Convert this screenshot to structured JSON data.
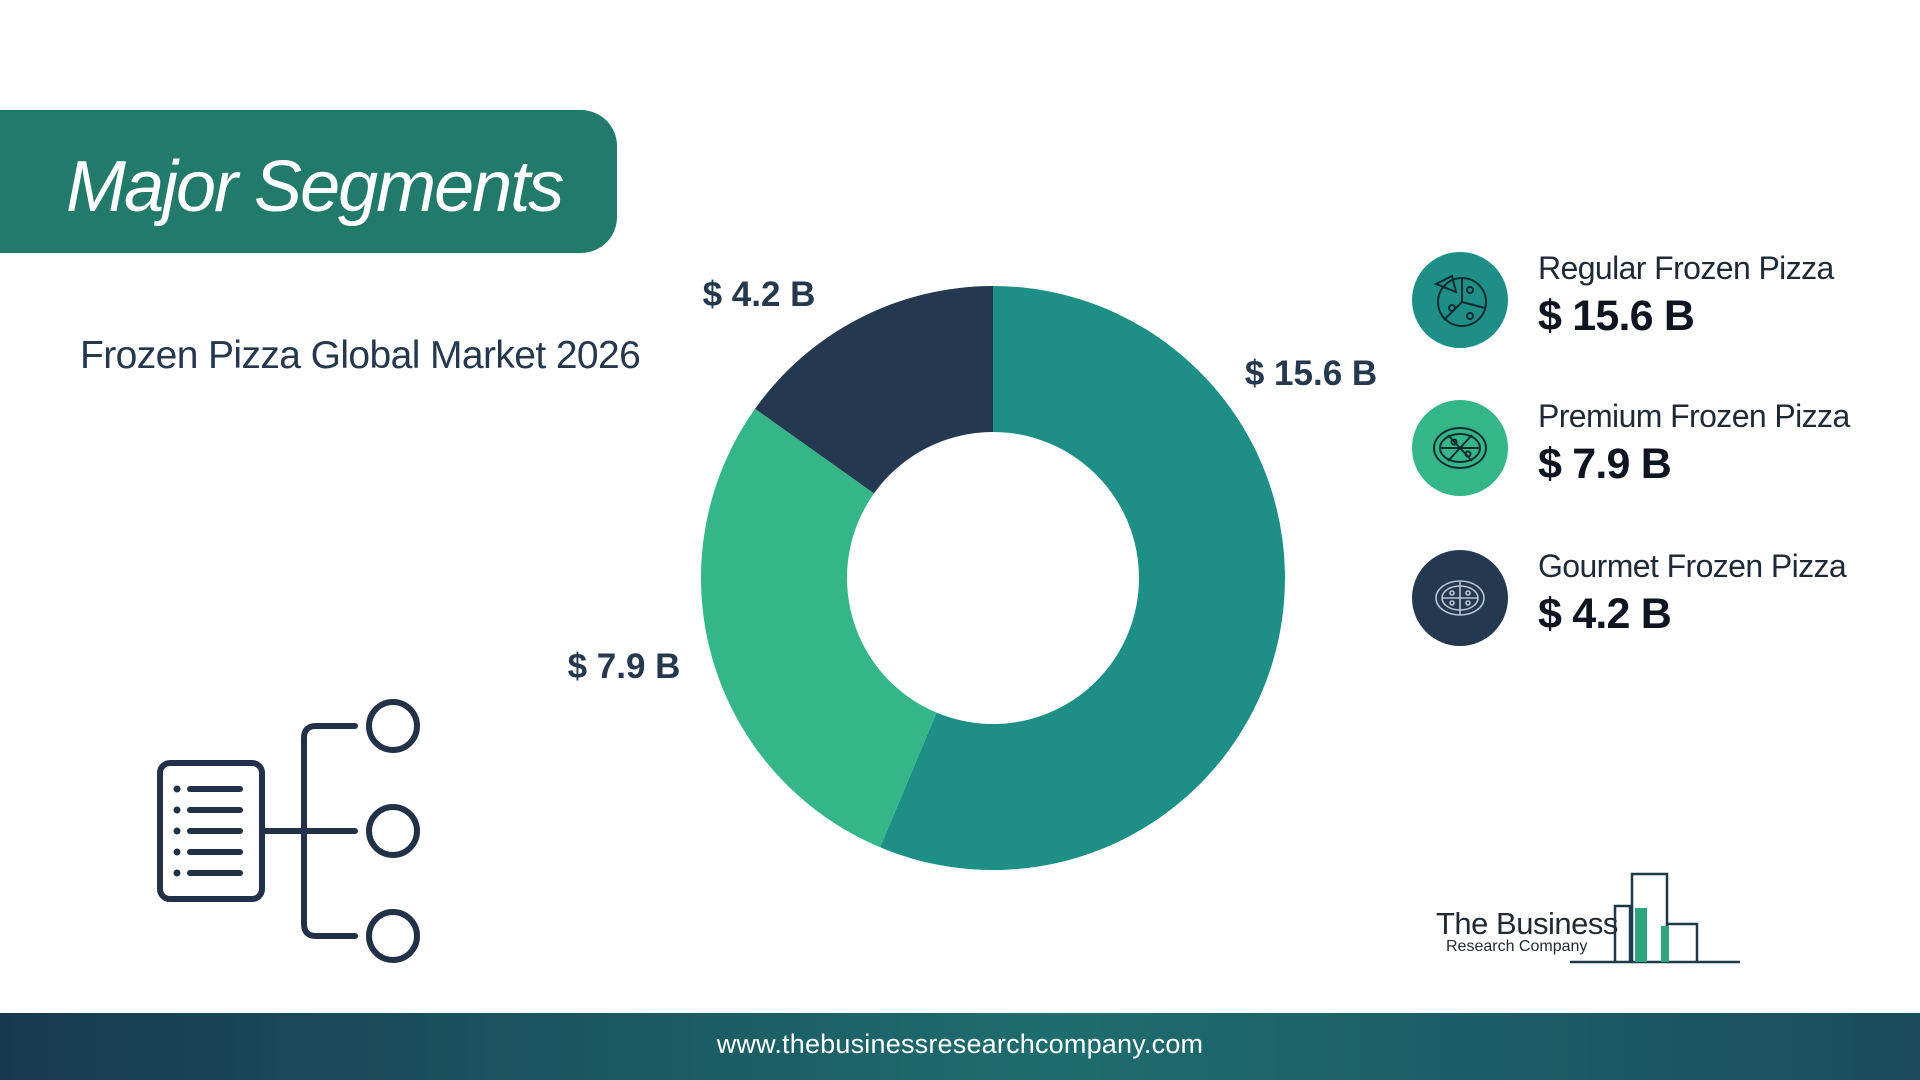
{
  "header": {
    "title": "Major Segments",
    "subtitle": "Frozen Pizza Global Market 2026"
  },
  "colors": {
    "banner": "#227A6A",
    "regular": "#1E8F86",
    "premium": "#34B688",
    "gourmet": "#243850",
    "dark_text": "#25384E"
  },
  "chart_data": {
    "type": "pie",
    "donut": true,
    "title": "Frozen Pizza Global Market 2026",
    "categories": [
      "Regular Frozen Pizza",
      "Premium Frozen Pizza",
      "Gourmet Frozen Pizza"
    ],
    "values": [
      15.6,
      7.9,
      4.2
    ],
    "data_labels": [
      "$ 15.6 B",
      "$ 7.9 B",
      "$ 4.2 B"
    ],
    "unit": "$ B",
    "legend_position": "right"
  },
  "legend": [
    {
      "name": "Regular Frozen Pizza",
      "value": "$ 15.6 B",
      "icon": "pizza-slice-icon"
    },
    {
      "name": "Premium Frozen Pizza",
      "value": "$ 7.9 B",
      "icon": "pizza-icon"
    },
    {
      "name": "Gourmet Frozen Pizza",
      "value": "$ 4.2 B",
      "icon": "pizza-top-view-icon"
    }
  ],
  "decor_icon": "segments-hierarchy-icon",
  "logo": {
    "line1": "The Business",
    "line2": "Research Company"
  },
  "footer": {
    "url": "www.thebusinessresearchcompany.com"
  }
}
